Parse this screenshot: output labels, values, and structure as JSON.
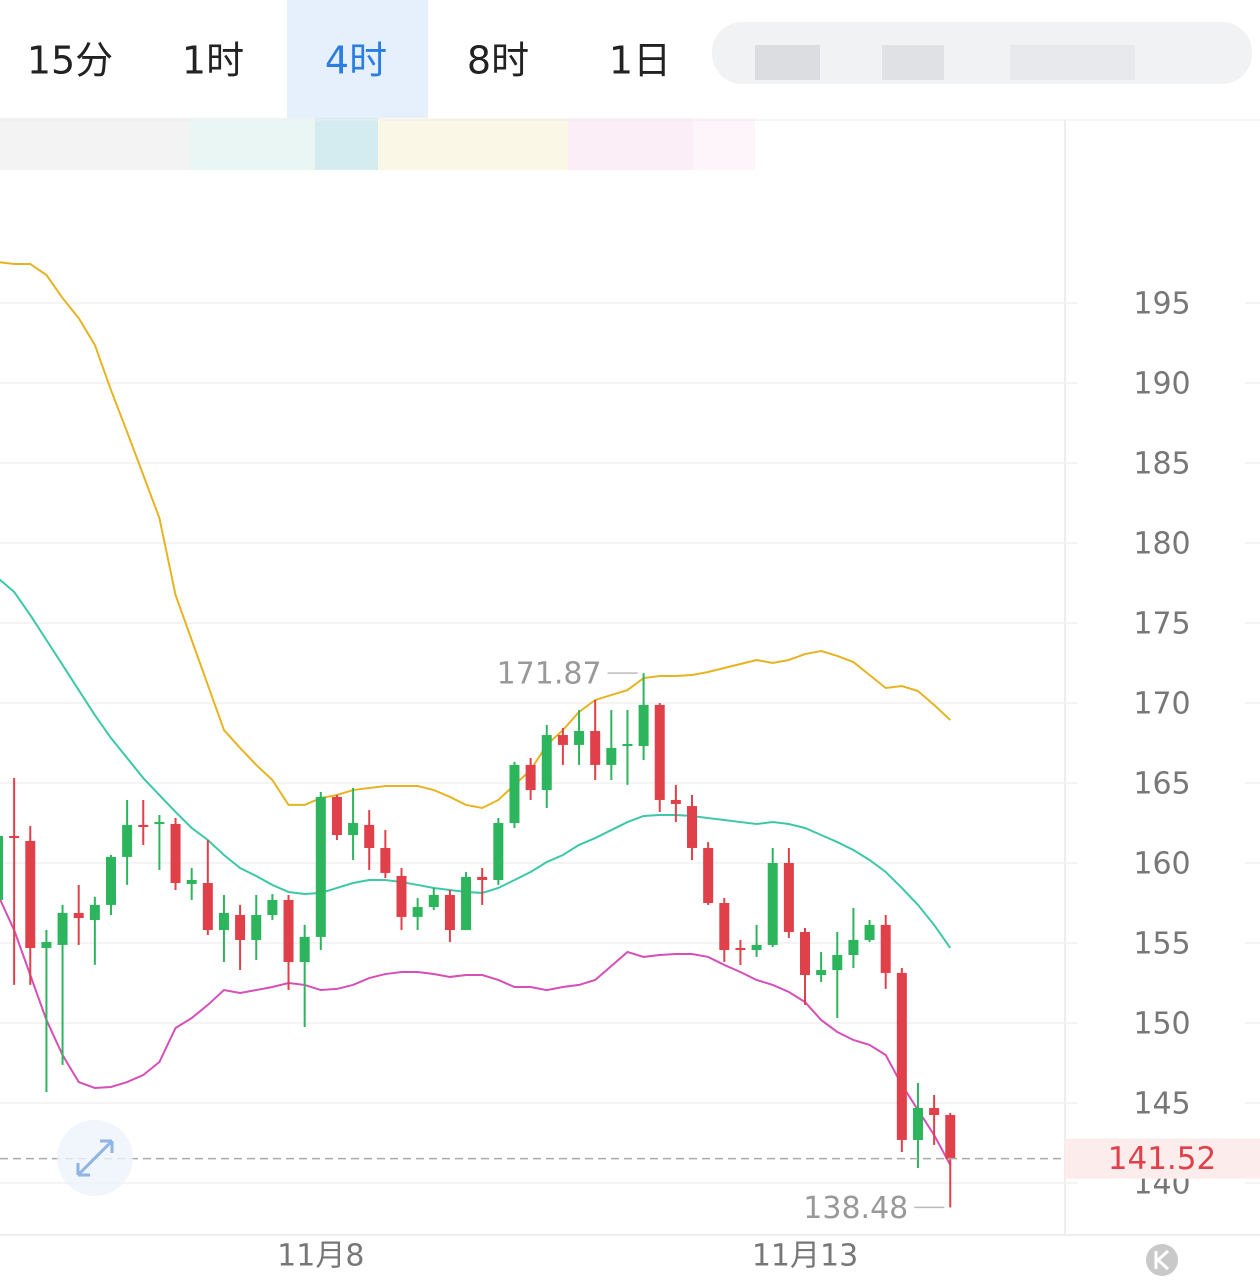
{
  "tabs": [
    "15分",
    "1时",
    "4时",
    "8时",
    "1日"
  ],
  "chart_data": {
    "type": "candlestick",
    "categories": [
      null,
      null,
      null,
      null,
      null,
      null,
      null,
      null,
      null,
      null,
      null,
      null,
      null,
      null,
      null,
      null,
      null,
      null,
      null,
      null,
      "11月8",
      null,
      null,
      null,
      null,
      null,
      null,
      null,
      null,
      null,
      null,
      null,
      null,
      null,
      null,
      null,
      null,
      null,
      null,
      null,
      null,
      null,
      null,
      null,
      null,
      null,
      null,
      null,
      null,
      null,
      "11月13",
      null,
      null,
      null,
      null,
      null,
      null,
      null,
      null,
      null
    ],
    "open": [
      157.69,
      161.69,
      161.38,
      154.69,
      154.88,
      156.88,
      156.44,
      157.38,
      160.38,
      162.38,
      162.44,
      162.44,
      158.69,
      158.75,
      155.81,
      156.75,
      155.19,
      156.75,
      157.69,
      153.81,
      155.38,
      164.13,
      161.75,
      162.38,
      160.94,
      159.19,
      156.63,
      157.25,
      158.0,
      155.81,
      159.13,
      158.94,
      162.5,
      166.13,
      164.56,
      168.0,
      167.38,
      168.25,
      166.13,
      167.31,
      167.31,
      169.88,
      163.94,
      163.56,
      160.94,
      157.5,
      154.69,
      154.56,
      154.88,
      160.0,
      155.69,
      153.0,
      153.31,
      154.25,
      155.19,
      156.13,
      153.13,
      142.69,
      144.69,
      144.25
    ],
    "high": [
      162.06,
      165.31,
      162.31,
      155.81,
      157.38,
      158.63,
      157.88,
      160.5,
      163.94,
      163.94,
      163.0,
      162.81,
      159.69,
      161.44,
      158.0,
      157.38,
      158.0,
      158.06,
      158.0,
      156.13,
      164.44,
      164.25,
      164.69,
      163.31,
      162.06,
      159.69,
      157.81,
      158.44,
      158.31,
      159.44,
      159.69,
      162.81,
      166.31,
      166.56,
      168.63,
      168.44,
      169.56,
      170.19,
      169.56,
      169.56,
      171.87,
      170.0,
      164.88,
      164.25,
      161.31,
      157.81,
      155.19,
      156.13,
      160.94,
      160.94,
      155.94,
      154.44,
      155.69,
      157.19,
      156.44,
      156.75,
      153.44,
      146.25,
      145.5,
      144.38
    ],
    "low": [
      157.38,
      152.38,
      152.38,
      145.69,
      147.38,
      154.88,
      153.63,
      156.75,
      158.63,
      161.13,
      159.56,
      158.31,
      157.69,
      155.5,
      153.81,
      153.31,
      153.94,
      156.44,
      152.06,
      149.75,
      154.56,
      161.44,
      160.19,
      159.56,
      159.06,
      155.81,
      155.81,
      157.06,
      155.06,
      155.81,
      157.38,
      158.63,
      162.19,
      163.94,
      163.44,
      166.13,
      166.13,
      165.19,
      165.19,
      164.88,
      166.44,
      163.19,
      162.56,
      160.19,
      157.38,
      153.81,
      153.63,
      154.13,
      154.75,
      155.31,
      151.13,
      152.56,
      150.31,
      153.44,
      155.06,
      152.13,
      141.94,
      140.94,
      142.38,
      138.48
    ],
    "close": [
      161.69,
      161.56,
      154.69,
      155.06,
      156.88,
      156.56,
      157.38,
      160.38,
      162.38,
      162.25,
      162.56,
      158.75,
      158.94,
      155.81,
      156.88,
      155.19,
      156.75,
      157.69,
      153.81,
      155.38,
      164.13,
      161.75,
      162.5,
      160.94,
      159.38,
      156.63,
      157.25,
      158.0,
      155.81,
      159.13,
      158.94,
      162.5,
      166.13,
      164.56,
      168.0,
      167.38,
      168.25,
      166.13,
      167.19,
      167.44,
      169.88,
      163.94,
      163.69,
      160.94,
      157.5,
      154.56,
      154.56,
      154.88,
      160.0,
      155.69,
      153.0,
      153.31,
      154.25,
      155.19,
      156.13,
      153.13,
      142.69,
      144.69,
      144.25,
      141.52
    ],
    "up_color": "#2db55d",
    "down_color": "#e0404a",
    "bands": [
      {
        "color": "#e6b422",
        "values": [
          197.56,
          197.44,
          197.44,
          196.75,
          195.31,
          194.06,
          192.38,
          189.56,
          186.94,
          184.25,
          181.56,
          176.75,
          173.94,
          171.13,
          168.31,
          167.19,
          166.13,
          165.19,
          163.63,
          163.63,
          164.06,
          164.25,
          164.56,
          164.69,
          164.81,
          164.81,
          164.81,
          164.56,
          164.13,
          163.63,
          163.44,
          163.94,
          164.88,
          165.81,
          167.38,
          168.31,
          169.44,
          170.19,
          170.5,
          170.81,
          171.56,
          171.69,
          171.69,
          171.75,
          171.94,
          172.19,
          172.44,
          172.69,
          172.5,
          172.69,
          173.06,
          173.25,
          172.94,
          172.56,
          171.75,
          170.94,
          171.06,
          170.75,
          169.88,
          168.94
        ]
      },
      {
        "color": "#3cc8a8",
        "values": [
          177.81,
          176.94,
          175.5,
          173.94,
          172.38,
          170.81,
          169.25,
          167.81,
          166.56,
          165.31,
          164.25,
          163.19,
          162.19,
          161.44,
          160.5,
          159.69,
          159.19,
          158.63,
          158.19,
          158.06,
          158.13,
          158.44,
          158.75,
          158.94,
          158.94,
          158.81,
          158.63,
          158.44,
          158.31,
          158.19,
          158.13,
          158.44,
          158.94,
          159.44,
          160.06,
          160.5,
          161.13,
          161.56,
          162.06,
          162.56,
          162.94,
          163.0,
          163.0,
          162.94,
          162.81,
          162.69,
          162.56,
          162.44,
          162.56,
          162.44,
          162.19,
          161.75,
          161.31,
          160.81,
          160.19,
          159.44,
          158.44,
          157.38,
          156.13,
          154.69
        ]
      },
      {
        "color": "#d44fb8",
        "values": [
          158.0,
          155.81,
          153.0,
          150.19,
          148.0,
          146.31,
          145.94,
          146.0,
          146.31,
          146.75,
          147.56,
          149.69,
          150.31,
          151.13,
          152.06,
          151.88,
          152.06,
          152.25,
          152.5,
          152.38,
          152.06,
          152.13,
          152.38,
          152.81,
          153.06,
          153.19,
          153.19,
          153.06,
          152.88,
          153.0,
          153.0,
          152.69,
          152.25,
          152.25,
          152.06,
          152.25,
          152.38,
          152.69,
          153.56,
          154.44,
          154.13,
          154.25,
          154.31,
          154.31,
          154.13,
          153.63,
          153.19,
          152.69,
          152.38,
          151.94,
          151.31,
          150.19,
          149.44,
          148.94,
          148.63,
          148.0,
          146.13,
          144.56,
          143.0,
          141.13
        ]
      }
    ],
    "ylim": [
      136.75,
      206.44
    ],
    "yticks": [
      140,
      145,
      150,
      155,
      160,
      165,
      170,
      175,
      180,
      185,
      190,
      195
    ],
    "grid": true
  }
}
